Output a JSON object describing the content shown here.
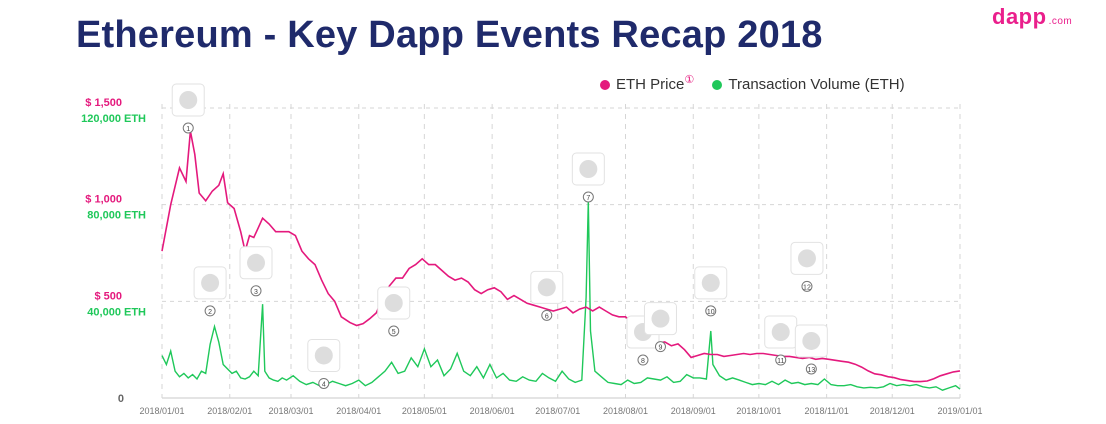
{
  "header": {
    "title": "Ethereum - Key Dapp Events Recap 2018",
    "logo": "dapp",
    "logo_suffix": ".com"
  },
  "legend": {
    "price_label": "ETH Price",
    "price_marker": "①",
    "volume_label": "Transaction Volume (ETH)"
  },
  "colors": {
    "price": "#e4197d",
    "volume": "#1fc85a",
    "grid": "#d6d6d6",
    "axis_text": "#777777",
    "title": "#1f2a6b",
    "price_axis": "#e4197d",
    "volume_axis": "#1fc85a"
  },
  "chart_data": {
    "type": "line",
    "title": "Ethereum - Key Dapp Events Recap 2018",
    "xlabel": "",
    "ylabel_left_price": "$",
    "ylabel_left_volume": "ETH",
    "price_ticks": [
      {
        "value": 500,
        "label": "$ 500"
      },
      {
        "value": 1000,
        "label": "$ 1,000"
      },
      {
        "value": 1500,
        "label": "$ 1,500"
      }
    ],
    "volume_ticks": [
      {
        "value": 40000,
        "label": "40,000 ETH"
      },
      {
        "value": 80000,
        "label": "80,000 ETH"
      },
      {
        "value": 120000,
        "label": "120,000 ETH"
      }
    ],
    "zero_label": "0",
    "price_ylim": [
      0,
      1500
    ],
    "volume_ylim": [
      0,
      120000
    ],
    "xlim_days": [
      0,
      365
    ],
    "x_ticks": [
      {
        "day": 0,
        "label": "2018/01/01"
      },
      {
        "day": 31,
        "label": "2018/02/01"
      },
      {
        "day": 59,
        "label": "2018/03/01"
      },
      {
        "day": 90,
        "label": "2018/04/01"
      },
      {
        "day": 120,
        "label": "2018/05/01"
      },
      {
        "day": 151,
        "label": "2018/06/01"
      },
      {
        "day": 181,
        "label": "2018/07/01"
      },
      {
        "day": 212,
        "label": "2018/08/01"
      },
      {
        "day": 243,
        "label": "2018/09/01"
      },
      {
        "day": 273,
        "label": "2018/10/01"
      },
      {
        "day": 304,
        "label": "2018/11/01"
      },
      {
        "day": 334,
        "label": "2018/12/01"
      },
      {
        "day": 365,
        "label": "2019/01/01"
      }
    ],
    "series": [
      {
        "name": "ETH Price",
        "points": [
          [
            0,
            760
          ],
          [
            4,
            1000
          ],
          [
            8,
            1190
          ],
          [
            11,
            1120
          ],
          [
            13,
            1380
          ],
          [
            15,
            1260
          ],
          [
            17,
            1060
          ],
          [
            20,
            1020
          ],
          [
            23,
            1070
          ],
          [
            26,
            1100
          ],
          [
            28,
            1160
          ],
          [
            30,
            1010
          ],
          [
            33,
            980
          ],
          [
            36,
            860
          ],
          [
            38,
            760
          ],
          [
            40,
            840
          ],
          [
            42,
            830
          ],
          [
            44,
            880
          ],
          [
            46,
            930
          ],
          [
            49,
            900
          ],
          [
            52,
            860
          ],
          [
            55,
            860
          ],
          [
            58,
            860
          ],
          [
            61,
            840
          ],
          [
            64,
            760
          ],
          [
            67,
            720
          ],
          [
            70,
            690
          ],
          [
            73,
            610
          ],
          [
            76,
            540
          ],
          [
            79,
            500
          ],
          [
            82,
            420
          ],
          [
            86,
            390
          ],
          [
            89,
            375
          ],
          [
            92,
            385
          ],
          [
            95,
            410
          ],
          [
            98,
            440
          ],
          [
            101,
            520
          ],
          [
            104,
            580
          ],
          [
            107,
            620
          ],
          [
            110,
            620
          ],
          [
            113,
            670
          ],
          [
            116,
            690
          ],
          [
            119,
            720
          ],
          [
            122,
            690
          ],
          [
            125,
            690
          ],
          [
            128,
            660
          ],
          [
            131,
            630
          ],
          [
            134,
            610
          ],
          [
            137,
            620
          ],
          [
            140,
            600
          ],
          [
            143,
            560
          ],
          [
            146,
            540
          ],
          [
            149,
            560
          ],
          [
            152,
            570
          ],
          [
            155,
            550
          ],
          [
            158,
            510
          ],
          [
            161,
            530
          ],
          [
            164,
            510
          ],
          [
            167,
            490
          ],
          [
            170,
            480
          ],
          [
            173,
            470
          ],
          [
            176,
            460
          ],
          [
            179,
            450
          ],
          [
            182,
            460
          ],
          [
            185,
            470
          ],
          [
            188,
            440
          ],
          [
            191,
            460
          ],
          [
            194,
            470
          ],
          [
            197,
            450
          ],
          [
            200,
            470
          ],
          [
            203,
            450
          ],
          [
            206,
            430
          ],
          [
            209,
            420
          ],
          [
            212,
            420
          ],
          [
            215,
            390
          ],
          [
            218,
            360
          ],
          [
            221,
            310
          ],
          [
            224,
            290
          ],
          [
            227,
            285
          ],
          [
            230,
            290
          ],
          [
            233,
            270
          ],
          [
            236,
            280
          ],
          [
            239,
            250
          ],
          [
            242,
            210
          ],
          [
            245,
            220
          ],
          [
            248,
            230
          ],
          [
            251,
            225
          ],
          [
            254,
            225
          ],
          [
            257,
            215
          ],
          [
            260,
            220
          ],
          [
            263,
            225
          ],
          [
            266,
            230
          ],
          [
            269,
            225
          ],
          [
            272,
            230
          ],
          [
            275,
            230
          ],
          [
            278,
            225
          ],
          [
            281,
            220
          ],
          [
            284,
            215
          ],
          [
            287,
            215
          ],
          [
            290,
            210
          ],
          [
            293,
            205
          ],
          [
            296,
            210
          ],
          [
            299,
            200
          ],
          [
            302,
            205
          ],
          [
            305,
            200
          ],
          [
            308,
            195
          ],
          [
            311,
            190
          ],
          [
            314,
            185
          ],
          [
            317,
            175
          ],
          [
            320,
            160
          ],
          [
            323,
            140
          ],
          [
            326,
            125
          ],
          [
            329,
            120
          ],
          [
            332,
            110
          ],
          [
            335,
            105
          ],
          [
            338,
            95
          ],
          [
            341,
            90
          ],
          [
            344,
            85
          ],
          [
            347,
            85
          ],
          [
            350,
            88
          ],
          [
            353,
            100
          ],
          [
            356,
            115
          ],
          [
            359,
            125
          ],
          [
            362,
            135
          ],
          [
            365,
            140
          ]
        ]
      },
      {
        "name": "Transaction Volume (ETH)",
        "points": [
          [
            0,
            19000
          ],
          [
            2,
            15000
          ],
          [
            4,
            21000
          ],
          [
            6,
            12000
          ],
          [
            8,
            9500
          ],
          [
            10,
            11000
          ],
          [
            12,
            9000
          ],
          [
            14,
            10500
          ],
          [
            16,
            8500
          ],
          [
            18,
            12000
          ],
          [
            20,
            11000
          ],
          [
            22,
            24000
          ],
          [
            24,
            32000
          ],
          [
            26,
            25000
          ],
          [
            28,
            15000
          ],
          [
            30,
            13000
          ],
          [
            32,
            11000
          ],
          [
            34,
            12000
          ],
          [
            36,
            9000
          ],
          [
            38,
            8500
          ],
          [
            40,
            9500
          ],
          [
            42,
            12000
          ],
          [
            44,
            10000
          ],
          [
            46,
            42000
          ],
          [
            47,
            12000
          ],
          [
            49,
            9000
          ],
          [
            51,
            8000
          ],
          [
            53,
            7500
          ],
          [
            55,
            9000
          ],
          [
            57,
            8000
          ],
          [
            60,
            10000
          ],
          [
            63,
            7500
          ],
          [
            66,
            6000
          ],
          [
            69,
            7000
          ],
          [
            72,
            5500
          ],
          [
            75,
            6000
          ],
          [
            78,
            7500
          ],
          [
            81,
            6500
          ],
          [
            84,
            5500
          ],
          [
            87,
            6500
          ],
          [
            90,
            8000
          ],
          [
            93,
            5500
          ],
          [
            96,
            7000
          ],
          [
            99,
            9500
          ],
          [
            102,
            12000
          ],
          [
            105,
            16000
          ],
          [
            108,
            11000
          ],
          [
            111,
            12000
          ],
          [
            114,
            18000
          ],
          [
            117,
            14000
          ],
          [
            120,
            22000
          ],
          [
            123,
            14000
          ],
          [
            126,
            17000
          ],
          [
            129,
            10000
          ],
          [
            132,
            13000
          ],
          [
            135,
            20000
          ],
          [
            138,
            12000
          ],
          [
            141,
            10000
          ],
          [
            144,
            14000
          ],
          [
            147,
            9000
          ],
          [
            150,
            15000
          ],
          [
            153,
            9000
          ],
          [
            156,
            11000
          ],
          [
            159,
            8000
          ],
          [
            162,
            7500
          ],
          [
            165,
            9500
          ],
          [
            168,
            8000
          ],
          [
            171,
            7500
          ],
          [
            174,
            11000
          ],
          [
            177,
            9000
          ],
          [
            180,
            7500
          ],
          [
            183,
            12000
          ],
          [
            186,
            8500
          ],
          [
            189,
            7000
          ],
          [
            192,
            8000
          ],
          [
            194,
            45000
          ],
          [
            195,
            88000
          ],
          [
            196,
            30000
          ],
          [
            198,
            12000
          ],
          [
            201,
            9500
          ],
          [
            204,
            7000
          ],
          [
            207,
            6500
          ],
          [
            210,
            6000
          ],
          [
            213,
            8000
          ],
          [
            216,
            6500
          ],
          [
            219,
            7000
          ],
          [
            222,
            9000
          ],
          [
            225,
            8500
          ],
          [
            228,
            8000
          ],
          [
            231,
            9500
          ],
          [
            234,
            7000
          ],
          [
            237,
            7500
          ],
          [
            240,
            10500
          ],
          [
            243,
            9000
          ],
          [
            246,
            9000
          ],
          [
            249,
            8500
          ],
          [
            251,
            30000
          ],
          [
            252,
            15000
          ],
          [
            255,
            10000
          ],
          [
            258,
            8000
          ],
          [
            261,
            9000
          ],
          [
            264,
            8000
          ],
          [
            267,
            7000
          ],
          [
            270,
            6000
          ],
          [
            273,
            6500
          ],
          [
            276,
            6000
          ],
          [
            279,
            7500
          ],
          [
            282,
            6000
          ],
          [
            285,
            8000
          ],
          [
            288,
            6500
          ],
          [
            291,
            7000
          ],
          [
            294,
            6000
          ],
          [
            297,
            6500
          ],
          [
            300,
            6000
          ],
          [
            303,
            8500
          ],
          [
            306,
            6000
          ],
          [
            309,
            5500
          ],
          [
            312,
            5500
          ],
          [
            315,
            6000
          ],
          [
            318,
            5000
          ],
          [
            321,
            4500
          ],
          [
            324,
            4800
          ],
          [
            327,
            4500
          ],
          [
            330,
            5000
          ],
          [
            333,
            6500
          ],
          [
            336,
            5500
          ],
          [
            339,
            6000
          ],
          [
            342,
            5500
          ],
          [
            345,
            6000
          ],
          [
            348,
            5000
          ],
          [
            351,
            4500
          ],
          [
            354,
            5000
          ],
          [
            357,
            3500
          ],
          [
            360,
            4500
          ],
          [
            363,
            5500
          ],
          [
            365,
            4000
          ]
        ]
      }
    ],
    "events": [
      {
        "label": "1",
        "day": 12,
        "volume": 132000
      },
      {
        "label": "2",
        "day": 22,
        "volume": 39000
      },
      {
        "label": "3",
        "day": 43,
        "volume": 48000
      },
      {
        "label": "4",
        "day": 74,
        "volume": 6500
      },
      {
        "label": "5",
        "day": 106,
        "volume": 30000
      },
      {
        "label": "6",
        "day": 176,
        "volume": 37000
      },
      {
        "label": "7",
        "day": 195,
        "volume": 90000
      },
      {
        "label": "8",
        "day": 220,
        "volume": 17000
      },
      {
        "label": "9",
        "day": 228,
        "volume": 23000
      },
      {
        "label": "10",
        "day": 251,
        "volume": 39000
      },
      {
        "label": "11",
        "day": 283,
        "volume": 17000
      },
      {
        "label": "12",
        "day": 295,
        "volume": 50000
      },
      {
        "label": "13",
        "day": 297,
        "volume": 13000
      }
    ]
  }
}
